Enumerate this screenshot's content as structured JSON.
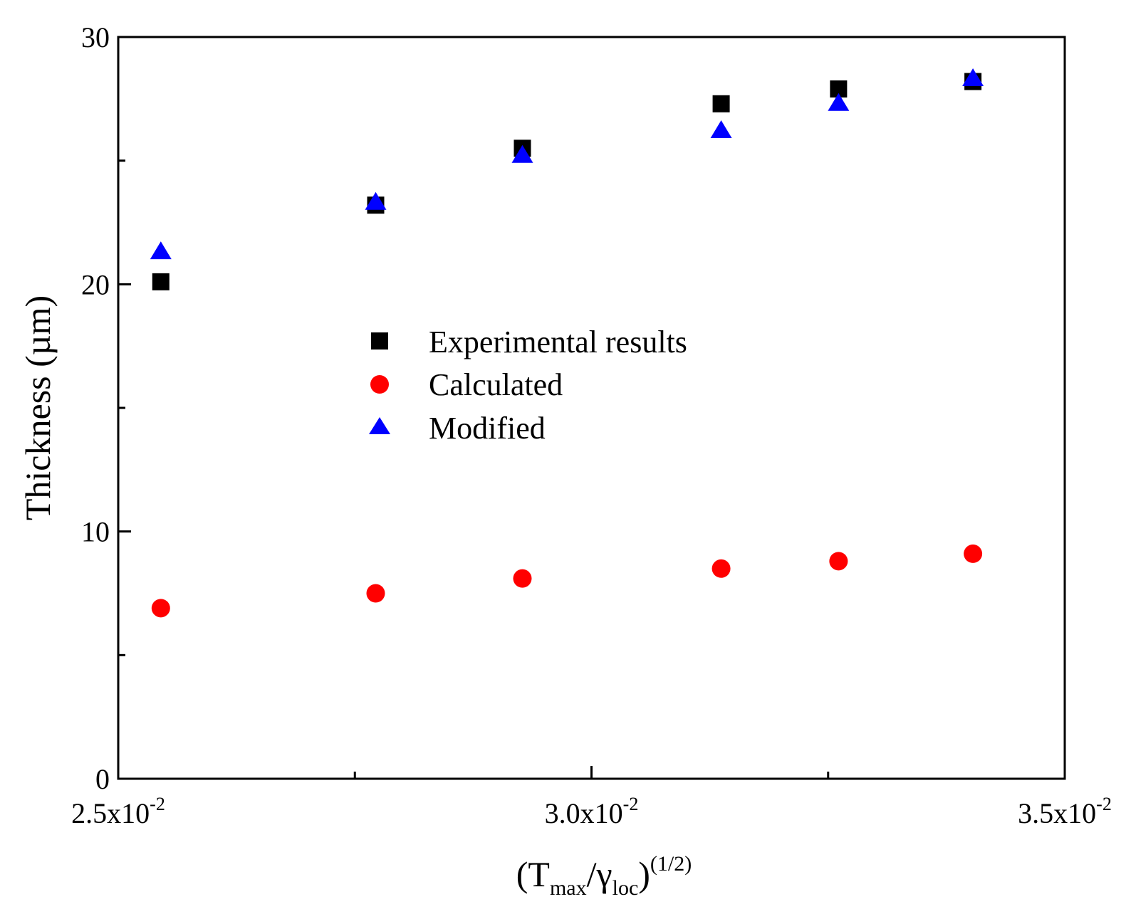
{
  "chart_data": {
    "type": "scatter",
    "title": "",
    "xlabel": {
      "open": "(T",
      "sub1": "max",
      "slash": "/γ",
      "sub2": "loc",
      "close": ")",
      "sup": "(1/2)"
    },
    "ylabel": "Thickness (µm)",
    "xlim": [
      0.025,
      0.035
    ],
    "ylim": [
      0,
      30
    ],
    "x_major_ticks": [
      {
        "value": 0.025,
        "mantissa": "2.5x10",
        "exp": "-2"
      },
      {
        "value": 0.03,
        "mantissa": "3.0x10",
        "exp": "-2"
      },
      {
        "value": 0.035,
        "mantissa": "3.5x10",
        "exp": "-2"
      }
    ],
    "x_minor_ticks": [
      0.0275,
      0.0325
    ],
    "y_major_ticks": [
      {
        "value": 0,
        "label": "0"
      },
      {
        "value": 10,
        "label": "10"
      },
      {
        "value": 20,
        "label": "20"
      },
      {
        "value": 30,
        "label": "30"
      }
    ],
    "y_minor_ticks": [
      5,
      15,
      25
    ],
    "legend_position": "center-left",
    "series": [
      {
        "name": "Experimental results",
        "marker": "square",
        "color": "#000000",
        "x": [
          0.02545,
          0.02772,
          0.02927,
          0.03137,
          0.03261,
          0.03403
        ],
        "y": [
          20.1,
          23.2,
          25.5,
          27.3,
          27.9,
          28.2
        ]
      },
      {
        "name": "Calculated",
        "marker": "circle",
        "color": "#ff0000",
        "x": [
          0.02545,
          0.02772,
          0.02927,
          0.03137,
          0.03261,
          0.03403
        ],
        "y": [
          6.9,
          7.5,
          8.1,
          8.5,
          8.8,
          9.1
        ]
      },
      {
        "name": "Modified",
        "marker": "triangle",
        "color": "#0000ff",
        "x": [
          0.02545,
          0.02772,
          0.02927,
          0.03137,
          0.03261,
          0.03403
        ],
        "y": [
          21.3,
          23.3,
          25.2,
          26.2,
          27.3,
          28.3
        ]
      }
    ]
  }
}
